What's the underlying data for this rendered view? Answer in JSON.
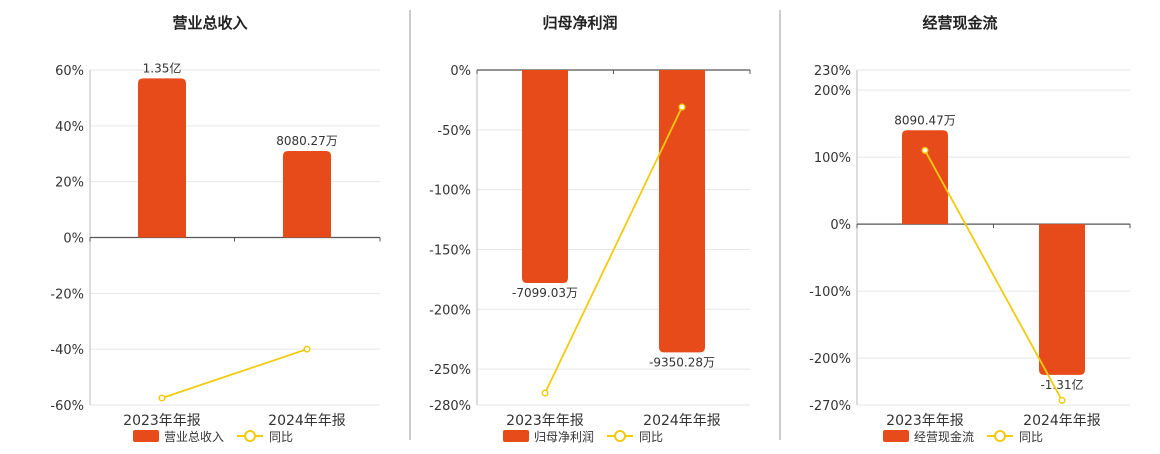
{
  "colors": {
    "bar": "#E84B1A",
    "line": "#F2CB0F",
    "grid": "#E6E6E6",
    "axis": "#555555",
    "divider": "#999999",
    "text": "#333333"
  },
  "legend_line_label": "同比",
  "chart_data": [
    {
      "type": "bar",
      "title": "营业总收入",
      "categories": [
        "2023年年报",
        "2024年年报"
      ],
      "series": [
        {
          "name": "营业总收入",
          "type": "bar",
          "values": [
            57,
            31
          ],
          "value_labels": [
            "1.35亿",
            "8080.27万"
          ]
        },
        {
          "name": "同比",
          "type": "line",
          "values": [
            -57.5,
            -40
          ]
        }
      ],
      "ylim": [
        -60,
        60
      ],
      "yticks": [
        60,
        40,
        20,
        0,
        -20,
        -40,
        -60
      ],
      "ytick_labels": [
        "60%",
        "40%",
        "20%",
        "0%",
        "-20%",
        "-40%",
        "-60%"
      ],
      "grid": true,
      "legend": "bottom"
    },
    {
      "type": "bar",
      "title": "归母净利润",
      "categories": [
        "2023年年报",
        "2024年年报"
      ],
      "series": [
        {
          "name": "归母净利润",
          "type": "bar",
          "values": [
            -178,
            -236
          ],
          "value_labels": [
            "-7099.03万",
            "-9350.28万"
          ]
        },
        {
          "name": "同比",
          "type": "line",
          "values": [
            -270,
            -31
          ]
        }
      ],
      "ylim": [
        -280,
        0
      ],
      "yticks": [
        0,
        -50,
        -100,
        -150,
        -200,
        -250,
        -280
      ],
      "ytick_labels": [
        "0%",
        "-50%",
        "-100%",
        "-150%",
        "-200%",
        "-250%",
        "-280%"
      ],
      "grid": true,
      "legend": "bottom"
    },
    {
      "type": "bar",
      "title": "经营现金流",
      "categories": [
        "2023年年报",
        "2024年年报"
      ],
      "series": [
        {
          "name": "经营现金流",
          "type": "bar",
          "values": [
            140,
            -225
          ],
          "value_labels": [
            "8090.47万",
            "-1.31亿"
          ]
        },
        {
          "name": "同比",
          "type": "line",
          "values": [
            110,
            -263
          ]
        }
      ],
      "ylim": [
        -270,
        230
      ],
      "yticks": [
        230,
        200,
        100,
        0,
        -100,
        -200,
        -270
      ],
      "ytick_labels": [
        "230%",
        "200%",
        "100%",
        "0%",
        "-100%",
        "-200%",
        "-270%"
      ],
      "grid": true,
      "legend": "bottom"
    }
  ]
}
